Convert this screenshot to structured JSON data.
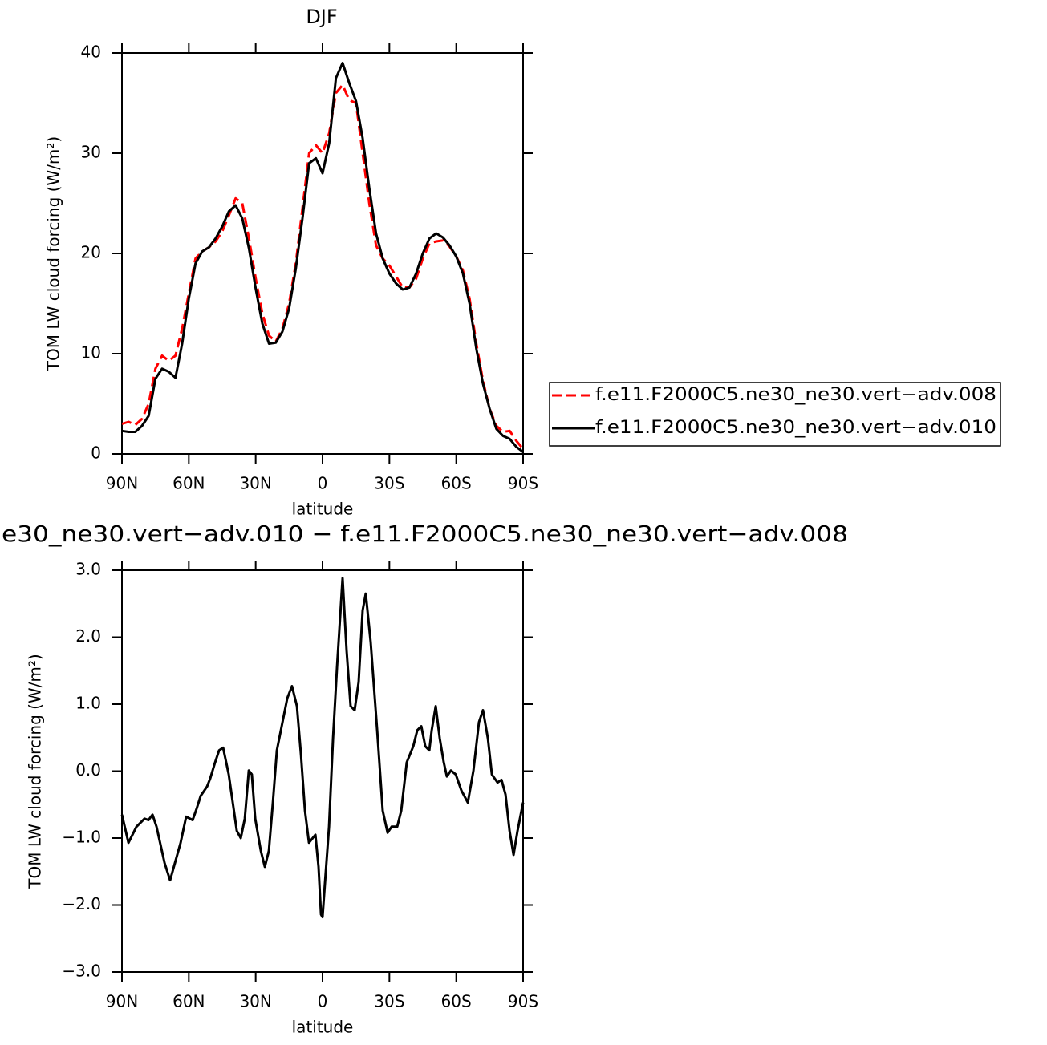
{
  "chart_data": [
    {
      "type": "line",
      "title": "DJF",
      "xlabel": "latitude",
      "ylabel": "TOM LW cloud forcing (W/m²)",
      "x": [
        90,
        87,
        84,
        81,
        78,
        75,
        72,
        69,
        66,
        63,
        60,
        57,
        54,
        51,
        48,
        45,
        42,
        39,
        36,
        33,
        30,
        27,
        24,
        21,
        18,
        15,
        12,
        9,
        6,
        3,
        0,
        -3,
        -6,
        -9,
        -12,
        -15,
        -18,
        -21,
        -24,
        -27,
        -30,
        -33,
        -36,
        -39,
        -42,
        -45,
        -48,
        -51,
        -54,
        -57,
        -60,
        -63,
        -66,
        -69,
        -72,
        -75,
        -78,
        -81,
        -84,
        -87,
        -90
      ],
      "series": [
        {
          "name": "f.e11.F2000C5.ne30_ne30.vert−adv.008",
          "color": "#ff0000",
          "linestyle": "dashed",
          "values": [
            3.0,
            3.2,
            2.9,
            3.5,
            5,
            8.5,
            9.8,
            9.3,
            9.8,
            12.5,
            16,
            19.5,
            20.2,
            20.6,
            21.2,
            22.2,
            23.8,
            25.5,
            25,
            21.5,
            17.5,
            14,
            11.8,
            11.2,
            12.5,
            15,
            19,
            24.5,
            30,
            30.8,
            30,
            32,
            36,
            36.8,
            35.3,
            35,
            30,
            25,
            20.8,
            19.5,
            18.8,
            17.7,
            16.6,
            16.6,
            17.5,
            19.5,
            21,
            21.2,
            21.3,
            20.7,
            19.7,
            18.3,
            15.5,
            11,
            7.3,
            4.5,
            2.8,
            2.2,
            2.3,
            1.3,
            0.5
          ]
        },
        {
          "name": "f.e11.F2000C5.ne30_ne30.vert−adv.010",
          "color": "#000000",
          "linestyle": "solid",
          "values": [
            2.3,
            2.2,
            2.2,
            2.8,
            3.8,
            7.5,
            8.5,
            8.2,
            7.6,
            11,
            15.5,
            19,
            20.2,
            20.6,
            21.5,
            22.7,
            24.2,
            24.8,
            23.5,
            20.5,
            16.5,
            13,
            11,
            11.1,
            12.2,
            14.5,
            18.5,
            23.5,
            29,
            29.5,
            28,
            31,
            37.5,
            39,
            37,
            35.2,
            31.5,
            26.5,
            22,
            19.5,
            18,
            17,
            16.4,
            16.6,
            18,
            20,
            21.5,
            22,
            21.6,
            20.8,
            19.7,
            18,
            15,
            10.5,
            7,
            4.5,
            2.5,
            1.8,
            1.5,
            0.7,
            0.2
          ]
        }
      ],
      "xlim": [
        90,
        -90
      ],
      "xticks": [
        {
          "value": 90,
          "label": "90N"
        },
        {
          "value": 60,
          "label": "60N"
        },
        {
          "value": 30,
          "label": "30N"
        },
        0,
        {
          "value": -30,
          "label": "30S"
        },
        {
          "value": -60,
          "label": "60S"
        },
        {
          "value": -90,
          "label": "90S"
        }
      ],
      "ylim": [
        0,
        40
      ],
      "yticks": [
        0,
        10,
        20,
        30,
        40
      ],
      "legend": "right"
    },
    {
      "type": "line",
      "title": "e30_ne30.vert−adv.010 − f.e11.F2000C5.ne30_ne30.vert−adv.008",
      "xlabel": "latitude",
      "ylabel": "TOM LW cloud forcing (W/m²)",
      "x": [
        90,
        87.1,
        83.5,
        79.9,
        78.1,
        76.3,
        74.5,
        70.9,
        68.4,
        63.7,
        61.2,
        58.3,
        56.5,
        54.7,
        51.8,
        50.4,
        48.2,
        46.4,
        44.6,
        42.1,
        40.3,
        38.5,
        36.7,
        34.9,
        33.1,
        31.7,
        30.2,
        27.7,
        25.9,
        24.1,
        22.3,
        20.5,
        18.7,
        15.8,
        13.7,
        11.5,
        9.7,
        7.9,
        6.1,
        3.2,
        1.8,
        0.7,
        0,
        -1.1,
        -2.9,
        -4.7,
        -6.5,
        -9,
        -10.8,
        -12.6,
        -14.4,
        -16.2,
        -18,
        -19.4,
        -21.6,
        -24.5,
        -27,
        -29.2,
        -31,
        -33.5,
        -35.3,
        -37.8,
        -40.7,
        -42.5,
        -44.3,
        -46.1,
        -47.9,
        -49,
        -50.8,
        -52.6,
        -54.4,
        -55.8,
        -57.6,
        -59.8,
        -62.3,
        -65.2,
        -67.7,
        -70.2,
        -72,
        -74.2,
        -76,
        -78.5,
        -80.3,
        -82.1,
        -83.9,
        -85.7,
        -87.5,
        -90
      ],
      "series": [
        {
          "color": "#000000",
          "linestyle": "solid",
          "values": [
            -0.65,
            -1.07,
            -0.83,
            -0.71,
            -0.73,
            -0.65,
            -0.83,
            -1.37,
            -1.63,
            -1.07,
            -0.68,
            -0.73,
            -0.56,
            -0.37,
            -0.23,
            -0.11,
            0.13,
            0.31,
            0.35,
            -0.05,
            -0.47,
            -0.89,
            -1.0,
            -0.71,
            0.01,
            -0.05,
            -0.71,
            -1.19,
            -1.43,
            -1.19,
            -0.47,
            0.31,
            0.61,
            1.09,
            1.27,
            0.97,
            0.25,
            -0.59,
            -1.07,
            -0.95,
            -1.43,
            -2.14,
            -2.18,
            -1.66,
            -0.83,
            0.49,
            1.56,
            2.88,
            1.8,
            0.97,
            0.91,
            1.33,
            2.4,
            2.65,
            1.93,
            0.61,
            -0.59,
            -0.92,
            -0.83,
            -0.83,
            -0.59,
            0.13,
            0.37,
            0.61,
            0.67,
            0.37,
            0.31,
            0.61,
            0.97,
            0.49,
            0.13,
            -0.08,
            0.01,
            -0.05,
            -0.29,
            -0.47,
            0.01,
            0.73,
            0.91,
            0.49,
            -0.05,
            -0.17,
            -0.13,
            -0.35,
            -0.89,
            -1.25,
            -0.89,
            -0.47
          ]
        }
      ],
      "xlim": [
        90,
        -90
      ],
      "xticks": [
        {
          "value": 90,
          "label": "90N"
        },
        {
          "value": 60,
          "label": "60N"
        },
        {
          "value": 30,
          "label": "30N"
        },
        0,
        {
          "value": -30,
          "label": "30S"
        },
        {
          "value": -60,
          "label": "60S"
        },
        {
          "value": -90,
          "label": "90S"
        }
      ],
      "ylim": [
        -3,
        3
      ],
      "yticks": [
        {
          "value": -3,
          "label": "−3.0"
        },
        {
          "value": -2,
          "label": "−2.0"
        },
        {
          "value": -1,
          "label": "−1.0"
        },
        {
          "value": 0,
          "label": "0.0"
        },
        {
          "value": 1,
          "label": "1.0"
        },
        {
          "value": 2,
          "label": "2.0"
        },
        {
          "value": 3,
          "label": "3.0"
        }
      ]
    }
  ]
}
